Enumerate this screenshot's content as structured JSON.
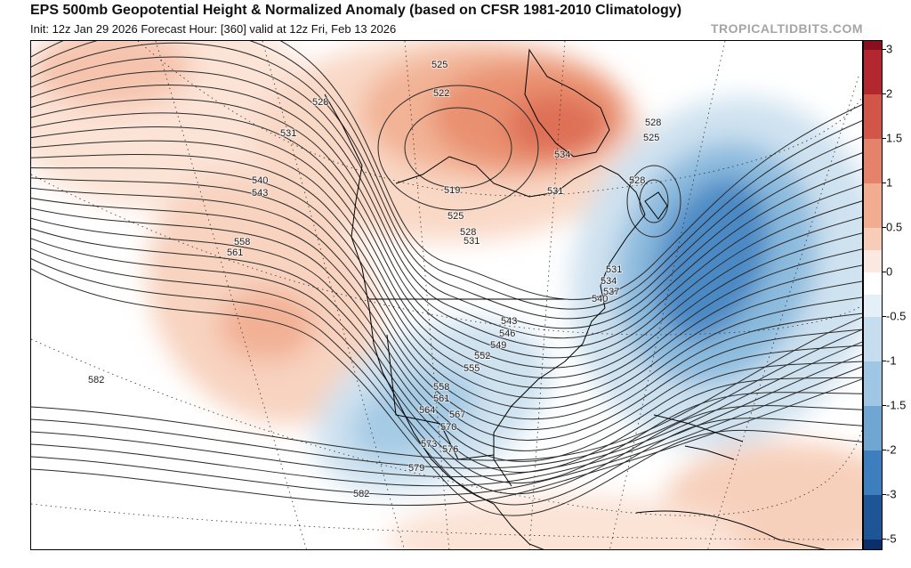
{
  "header": {
    "title": "EPS 500mb Geopotential Height & Normalized Anomaly (based on CFSR 1981-2010 Climatology)",
    "subtitle": "Init: 12z Jan 29 2026   Forecast Hour: [360]   valid at 12z Fri, Feb 13 2026",
    "credit": "TROPICALTIDBITS.COM"
  },
  "colorbar": {
    "tick_labels": [
      "3",
      "2",
      "1.5",
      "1",
      "0.5",
      "0",
      "-0.5",
      "-1",
      "-1.5",
      "-2",
      "-3",
      "-5"
    ],
    "tick_values": [
      3,
      2,
      1.5,
      1,
      0.5,
      0,
      -0.5,
      -1,
      -1.5,
      -2,
      -3,
      -5
    ],
    "positive_colors": [
      "#fbe9e1",
      "#f8cdb8",
      "#f2ac8f",
      "#e5826a",
      "#d15648",
      "#b3282e",
      "#8a0f1e"
    ],
    "negative_colors": [
      "#e4eff7",
      "#c5ddee",
      "#9fc6e2",
      "#6fa6d2",
      "#3d7fbe",
      "#1e5597",
      "#0b2f6a"
    ]
  },
  "map": {
    "contour_labels": [
      "525",
      "522",
      "528",
      "531",
      "534",
      "528",
      "525",
      "528",
      "531",
      "540",
      "543",
      "519",
      "525",
      "528",
      "531",
      "558",
      "561",
      "531",
      "534",
      "537",
      "540",
      "543",
      "546",
      "549",
      "552",
      "555",
      "558",
      "561",
      "564",
      "567",
      "570",
      "573",
      "576",
      "579",
      "582",
      "582"
    ],
    "anomaly_regions": [
      {
        "name": "northern-canada-warm",
        "anomaly": 1.5
      },
      {
        "name": "greenland-warm",
        "anomaly": 2
      },
      {
        "name": "north-pacific-warm",
        "anomaly": 0.5
      },
      {
        "name": "northeast-pacific-ridge",
        "anomaly": 1
      },
      {
        "name": "northwest-atlantic-trough",
        "anomaly": -2.5
      },
      {
        "name": "western-us-trough",
        "anomaly": -1.5
      },
      {
        "name": "caribbean-warm",
        "anomaly": 1
      }
    ]
  }
}
